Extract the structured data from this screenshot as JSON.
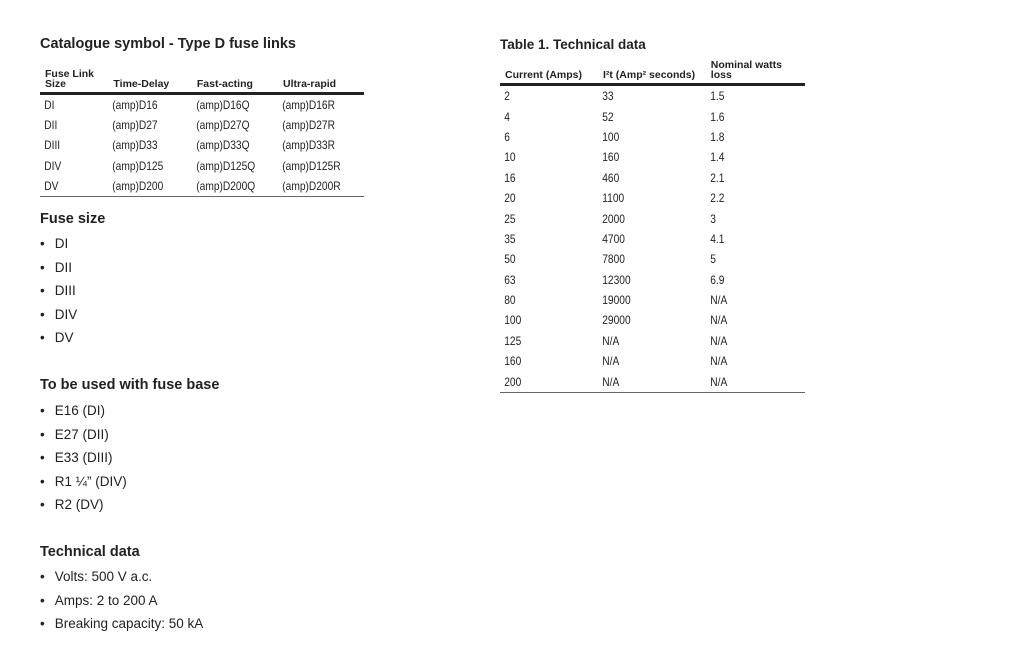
{
  "catalogue": {
    "title": "Catalogue symbol - Type D fuse links",
    "headers": [
      "Fuse Link Size",
      "Time-Delay",
      "Fast-acting",
      "Ultra-rapid"
    ],
    "rows": [
      [
        "DI",
        "(amp)D16",
        "(amp)D16Q",
        "(amp)D16R"
      ],
      [
        "DII",
        "(amp)D27",
        "(amp)D27Q",
        "(amp)D27R"
      ],
      [
        "DIII",
        "(amp)D33",
        "(amp)D33Q",
        "(amp)D33R"
      ],
      [
        "DIV",
        "(amp)D125",
        "(amp)D125Q",
        "(amp)D125R"
      ],
      [
        "DV",
        "(amp)D200",
        "(amp)D200Q",
        "(amp)D200R"
      ]
    ]
  },
  "fuse_size": {
    "title": "Fuse size",
    "items": [
      "DI",
      "DII",
      "DIII",
      "DIV",
      "DV"
    ]
  },
  "fuse_base": {
    "title": "To be used with fuse base",
    "items": [
      "E16 (DI)",
      "E27 (DII)",
      "E33 (DIII)",
      "R1 ¼” (DIV)",
      "R2 (DV)"
    ]
  },
  "tech": {
    "title": "Technical data",
    "items": [
      "Volts: 500 V a.c.",
      "Amps: 2 to 200 A",
      "Breaking capacity: 50 kA"
    ]
  },
  "table1": {
    "title": "Table 1.  Technical data",
    "headers": [
      "Current (Amps)",
      "I²t (Amp² seconds)",
      "Nominal watts loss"
    ],
    "rows": [
      [
        "2",
        "33",
        "1.5"
      ],
      [
        "4",
        "52",
        "1.6"
      ],
      [
        "6",
        "100",
        "1.8"
      ],
      [
        "10",
        "160",
        "1.4"
      ],
      [
        "16",
        "460",
        "2.1"
      ],
      [
        "20",
        "1100",
        "2.2"
      ],
      [
        "25",
        "2000",
        "3"
      ],
      [
        "35",
        "4700",
        "4.1"
      ],
      [
        "50",
        "7800",
        "5"
      ],
      [
        "63",
        "12300",
        "6.9"
      ],
      [
        "80",
        "19000",
        "N/A"
      ],
      [
        "100",
        "29000",
        "N/A"
      ],
      [
        "125",
        "N/A",
        "N/A"
      ],
      [
        "160",
        "N/A",
        "N/A"
      ],
      [
        "200",
        "N/A",
        "N/A"
      ]
    ]
  }
}
